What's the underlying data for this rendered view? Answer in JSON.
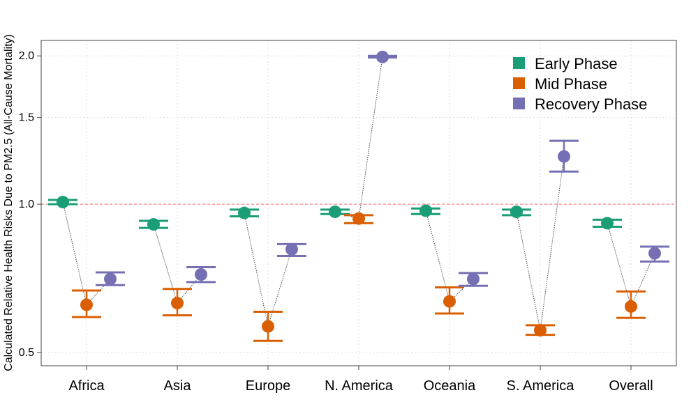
{
  "chart_data": {
    "type": "scatter",
    "title": "",
    "xlabel": "",
    "ylabel": "Calculated Relative Health Risks Due to PM2.5 (All-Cause Mortality)",
    "y_scale": "log",
    "ylim": [
      0.47,
      2.15
    ],
    "yticks": [
      0.5,
      1.0,
      1.5,
      2.0
    ],
    "ytick_labels": [
      "0.5",
      "1.0",
      "1.5",
      "2.0"
    ],
    "reference_line": 1.0,
    "reference_line_color": "#ff6b6b",
    "grid": true,
    "legend_position": "top-right",
    "categories": [
      "Africa",
      "Asia",
      "Europe",
      "N. America",
      "Oceania",
      "S. America",
      "Overall"
    ],
    "series": [
      {
        "name": "Early Phase",
        "color": "#1b9e77",
        "values": [
          1.01,
          0.91,
          0.96,
          0.965,
          0.97,
          0.965,
          0.915
        ],
        "lower": [
          1.0,
          0.895,
          0.945,
          0.955,
          0.955,
          0.95,
          0.9
        ],
        "upper": [
          1.02,
          0.925,
          0.975,
          0.975,
          0.98,
          0.975,
          0.93
        ]
      },
      {
        "name": "Mid Phase",
        "color": "#d95f02",
        "values": [
          0.625,
          0.63,
          0.565,
          0.935,
          0.635,
          0.555,
          0.62
        ],
        "lower": [
          0.59,
          0.595,
          0.528,
          0.915,
          0.6,
          0.543,
          0.588
        ],
        "upper": [
          0.668,
          0.673,
          0.605,
          0.95,
          0.678,
          0.568,
          0.665
        ]
      },
      {
        "name": "Recovery Phase",
        "color": "#7570b3",
        "values": [
          0.705,
          0.72,
          0.81,
          1.99,
          0.705,
          1.25,
          0.795
        ],
        "lower": [
          0.685,
          0.695,
          0.785,
          1.985,
          0.683,
          1.165,
          0.765
        ],
        "upper": [
          0.727,
          0.745,
          0.83,
          2.0,
          0.725,
          1.345,
          0.82
        ]
      }
    ]
  }
}
